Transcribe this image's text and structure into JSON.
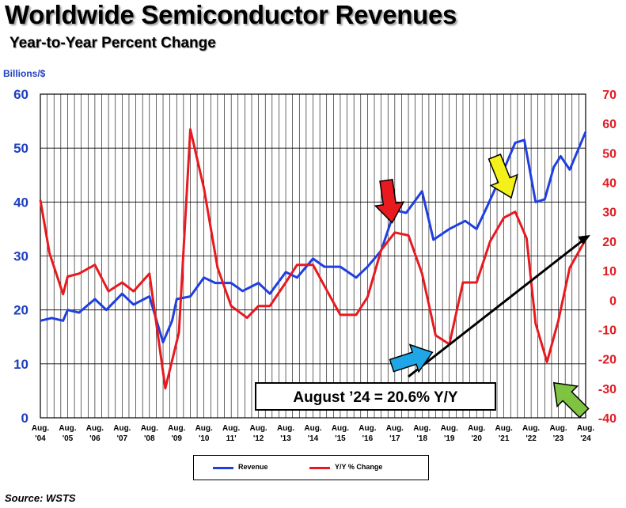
{
  "title": "Worldwide Semiconductor Revenues",
  "subtitle": "Year-to-Year Percent Change",
  "source": "Source: WSTS",
  "colors": {
    "revenue": "#1f3fe0",
    "yoy": "#e8191f",
    "grid": "#000000"
  },
  "chart_data": {
    "type": "line",
    "unit_label": "Billions/$",
    "x_start": "2004-08",
    "x_end": "2024-08",
    "x_ticks": [
      [
        "Aug.",
        "'04"
      ],
      [
        "Aug.",
        "'05"
      ],
      [
        "Aug.",
        "'06"
      ],
      [
        "Aug.",
        "'07"
      ],
      [
        "Aug.",
        "'08"
      ],
      [
        "Aug.",
        "'09"
      ],
      [
        "Aug.",
        "'10"
      ],
      [
        "Aug.",
        "11'"
      ],
      [
        "Aug.",
        "'12"
      ],
      [
        "Aug.",
        "'13"
      ],
      [
        "Aug.",
        "'14"
      ],
      [
        "Aug.",
        "'15"
      ],
      [
        "Aug.",
        "'16"
      ],
      [
        "Aug.",
        "'17"
      ],
      [
        "Aug.",
        "'18"
      ],
      [
        "Aug.",
        "'19"
      ],
      [
        "Aug.",
        "'20"
      ],
      [
        "Aug.",
        "'21"
      ],
      [
        "Aug.",
        "'22"
      ],
      [
        "Aug.",
        "'23"
      ],
      [
        "Aug.",
        "'24"
      ]
    ],
    "y_left": {
      "min": 0,
      "max": 60,
      "ticks": [
        0,
        10,
        20,
        30,
        40,
        50,
        60
      ]
    },
    "y_right": {
      "min": -40,
      "max": 70,
      "ticks": [
        -40,
        -30,
        -20,
        -10,
        0,
        10,
        20,
        30,
        40,
        50,
        60,
        70
      ]
    },
    "grid": true,
    "legend_position": "bottom",
    "series": [
      {
        "name": "Revenue",
        "axis": "left",
        "points": [
          [
            "2004-08",
            18
          ],
          [
            "2005-01",
            18.5
          ],
          [
            "2005-06",
            18
          ],
          [
            "2005-08",
            20
          ],
          [
            "2006-01",
            19.5
          ],
          [
            "2006-08",
            22
          ],
          [
            "2007-01",
            20
          ],
          [
            "2007-08",
            23
          ],
          [
            "2008-01",
            21
          ],
          [
            "2008-08",
            22.5
          ],
          [
            "2009-02",
            14
          ],
          [
            "2009-06",
            18
          ],
          [
            "2009-08",
            22
          ],
          [
            "2010-02",
            22.5
          ],
          [
            "2010-08",
            26
          ],
          [
            "2011-01",
            25
          ],
          [
            "2011-08",
            25
          ],
          [
            "2012-01",
            23.5
          ],
          [
            "2012-08",
            25
          ],
          [
            "2013-01",
            23
          ],
          [
            "2013-08",
            27
          ],
          [
            "2014-01",
            26
          ],
          [
            "2014-08",
            29.5
          ],
          [
            "2015-01",
            28
          ],
          [
            "2015-08",
            28
          ],
          [
            "2016-03",
            26
          ],
          [
            "2016-08",
            28
          ],
          [
            "2017-02",
            31
          ],
          [
            "2017-08",
            38.5
          ],
          [
            "2018-01",
            38
          ],
          [
            "2018-08",
            42
          ],
          [
            "2019-01",
            33
          ],
          [
            "2019-08",
            35
          ],
          [
            "2020-03",
            36.5
          ],
          [
            "2020-08",
            35
          ],
          [
            "2021-01",
            39.5
          ],
          [
            "2021-08",
            46
          ],
          [
            "2022-01",
            51
          ],
          [
            "2022-05",
            51.5
          ],
          [
            "2022-10",
            40
          ],
          [
            "2023-02",
            40.5
          ],
          [
            "2023-06",
            46.5
          ],
          [
            "2023-09",
            48.5
          ],
          [
            "2024-01",
            46
          ],
          [
            "2024-08",
            53
          ]
        ]
      },
      {
        "name": "Y/Y % Change",
        "axis": "right",
        "points": [
          [
            "2004-08",
            34
          ],
          [
            "2004-12",
            16
          ],
          [
            "2005-06",
            2
          ],
          [
            "2005-08",
            8
          ],
          [
            "2006-01",
            9
          ],
          [
            "2006-08",
            12
          ],
          [
            "2007-02",
            3
          ],
          [
            "2007-08",
            6
          ],
          [
            "2008-01",
            3
          ],
          [
            "2008-08",
            9
          ],
          [
            "2009-03",
            -30
          ],
          [
            "2009-09",
            -11
          ],
          [
            "2010-02",
            58
          ],
          [
            "2010-08",
            38
          ],
          [
            "2011-02",
            11
          ],
          [
            "2011-08",
            -2
          ],
          [
            "2012-03",
            -6
          ],
          [
            "2012-08",
            -2
          ],
          [
            "2013-01",
            -2
          ],
          [
            "2013-08",
            6
          ],
          [
            "2014-01",
            12
          ],
          [
            "2014-08",
            12
          ],
          [
            "2015-03",
            2
          ],
          [
            "2015-08",
            -5
          ],
          [
            "2016-03",
            -5
          ],
          [
            "2016-08",
            1
          ],
          [
            "2017-02",
            17
          ],
          [
            "2017-08",
            23
          ],
          [
            "2018-02",
            22
          ],
          [
            "2018-08",
            9
          ],
          [
            "2019-02",
            -12
          ],
          [
            "2019-08",
            -15
          ],
          [
            "2020-02",
            6
          ],
          [
            "2020-08",
            6
          ],
          [
            "2021-02",
            20
          ],
          [
            "2021-08",
            28
          ],
          [
            "2022-01",
            30
          ],
          [
            "2022-06",
            21
          ],
          [
            "2022-10",
            -8
          ],
          [
            "2023-03",
            -21
          ],
          [
            "2023-08",
            -7
          ],
          [
            "2024-01",
            11
          ],
          [
            "2024-08",
            20.6
          ]
        ]
      }
    ],
    "annotation": "August ’24 = 20.6% Y/Y"
  }
}
